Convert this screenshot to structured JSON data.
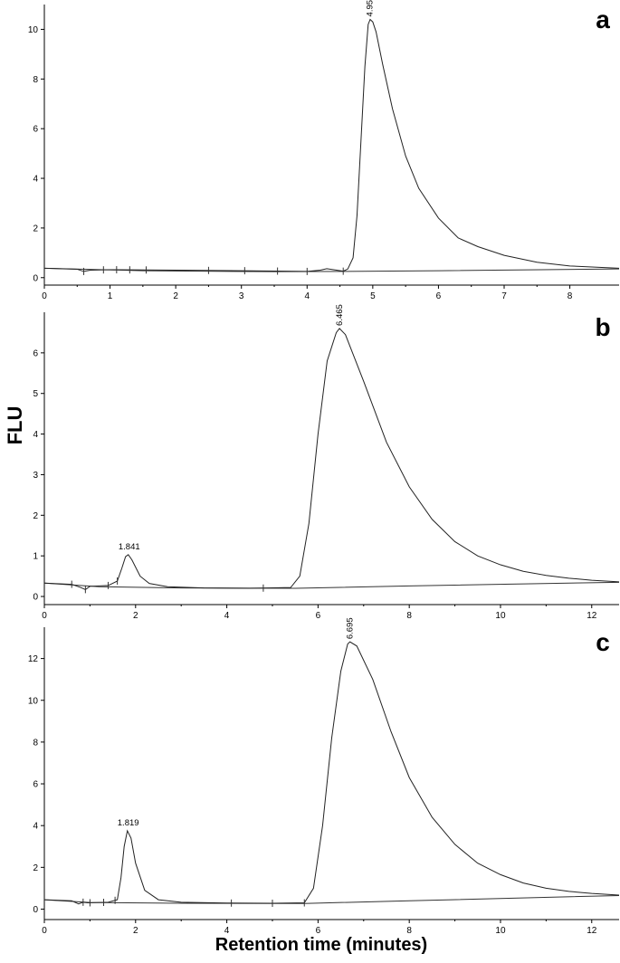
{
  "figure": {
    "ylabel": "FLU",
    "xlabel": "Retention time (minutes)"
  },
  "chart_data": [
    {
      "type": "line",
      "panel_label": "a",
      "xlim": [
        0,
        8.75
      ],
      "ylim": [
        -0.3,
        11
      ],
      "xticks": [
        0,
        1,
        2,
        3,
        4,
        5,
        6,
        7,
        8
      ],
      "yticks": [
        0,
        2,
        4,
        6,
        8,
        10
      ],
      "baseline": [
        [
          0,
          0.38
        ],
        [
          1.5,
          0.28
        ],
        [
          3.5,
          0.24
        ],
        [
          4.6,
          0.25
        ],
        [
          6,
          0.28
        ],
        [
          8.75,
          0.35
        ]
      ],
      "points": [
        [
          0,
          0.38
        ],
        [
          0.5,
          0.34
        ],
        [
          0.6,
          0.25
        ],
        [
          0.7,
          0.3
        ],
        [
          1.0,
          0.32
        ],
        [
          2.0,
          0.3
        ],
        [
          3.0,
          0.28
        ],
        [
          4.0,
          0.25
        ],
        [
          4.2,
          0.3
        ],
        [
          4.3,
          0.36
        ],
        [
          4.45,
          0.3
        ],
        [
          4.55,
          0.26
        ],
        [
          4.62,
          0.35
        ],
        [
          4.7,
          0.8
        ],
        [
          4.76,
          2.5
        ],
        [
          4.82,
          5.5
        ],
        [
          4.88,
          8.5
        ],
        [
          4.93,
          10.2
        ],
        [
          4.96,
          10.4
        ],
        [
          5.0,
          10.3
        ],
        [
          5.05,
          9.9
        ],
        [
          5.15,
          8.6
        ],
        [
          5.3,
          6.8
        ],
        [
          5.5,
          4.9
        ],
        [
          5.7,
          3.6
        ],
        [
          6.0,
          2.4
        ],
        [
          6.3,
          1.6
        ],
        [
          6.6,
          1.25
        ],
        [
          7.0,
          0.9
        ],
        [
          7.5,
          0.62
        ],
        [
          8.0,
          0.47
        ],
        [
          8.75,
          0.38
        ]
      ],
      "peak_labels": [
        {
          "x": 4.957,
          "y": 10.4,
          "text": "4.957"
        }
      ],
      "integration_marks": [
        0.6,
        0.9,
        1.1,
        1.3,
        1.55,
        2.5,
        3.05,
        3.55,
        4.0,
        4.55
      ]
    },
    {
      "type": "line",
      "panel_label": "b",
      "xlim": [
        0,
        12.6
      ],
      "ylim": [
        -0.2,
        7
      ],
      "xticks": [
        0,
        2,
        4,
        6,
        8,
        10,
        12
      ],
      "yticks": [
        0,
        1,
        2,
        3,
        4,
        5,
        6
      ],
      "baseline": [
        [
          0,
          0.33
        ],
        [
          1.2,
          0.24
        ],
        [
          3,
          0.21
        ],
        [
          5.5,
          0.2
        ],
        [
          8,
          0.26
        ],
        [
          12.6,
          0.35
        ]
      ],
      "points": [
        [
          0,
          0.33
        ],
        [
          0.6,
          0.3
        ],
        [
          0.8,
          0.22
        ],
        [
          0.9,
          0.17
        ],
        [
          1.0,
          0.25
        ],
        [
          1.4,
          0.27
        ],
        [
          1.6,
          0.38
        ],
        [
          1.7,
          0.7
        ],
        [
          1.78,
          0.98
        ],
        [
          1.84,
          1.03
        ],
        [
          1.92,
          0.9
        ],
        [
          2.1,
          0.5
        ],
        [
          2.3,
          0.32
        ],
        [
          2.7,
          0.24
        ],
        [
          3.5,
          0.21
        ],
        [
          4.5,
          0.2
        ],
        [
          5.4,
          0.22
        ],
        [
          5.6,
          0.5
        ],
        [
          5.8,
          1.8
        ],
        [
          6.0,
          4.0
        ],
        [
          6.2,
          5.8
        ],
        [
          6.4,
          6.5
        ],
        [
          6.47,
          6.6
        ],
        [
          6.6,
          6.45
        ],
        [
          7.0,
          5.3
        ],
        [
          7.5,
          3.8
        ],
        [
          8.0,
          2.7
        ],
        [
          8.5,
          1.9
        ],
        [
          9.0,
          1.35
        ],
        [
          9.5,
          1.0
        ],
        [
          10.0,
          0.78
        ],
        [
          10.5,
          0.62
        ],
        [
          11.0,
          0.52
        ],
        [
          11.5,
          0.45
        ],
        [
          12.0,
          0.4
        ],
        [
          12.6,
          0.36
        ]
      ],
      "peak_labels": [
        {
          "x": 1.841,
          "y": 1.03,
          "text": "1.841"
        },
        {
          "x": 6.465,
          "y": 6.6,
          "text": "6.465"
        }
      ],
      "integration_marks": [
        0.6,
        0.9,
        1.4,
        1.6,
        4.8
      ]
    },
    {
      "type": "line",
      "panel_label": "c",
      "xlim": [
        0,
        12.6
      ],
      "ylim": [
        -0.5,
        13.5
      ],
      "xticks": [
        0,
        2,
        4,
        6,
        8,
        10,
        12
      ],
      "yticks": [
        0,
        2,
        4,
        6,
        8,
        10,
        12
      ],
      "baseline": [
        [
          0,
          0.45
        ],
        [
          1.0,
          0.32
        ],
        [
          3,
          0.28
        ],
        [
          5.7,
          0.27
        ],
        [
          8,
          0.4
        ],
        [
          12.6,
          0.65
        ]
      ],
      "points": [
        [
          0,
          0.45
        ],
        [
          0.6,
          0.4
        ],
        [
          0.75,
          0.25
        ],
        [
          0.85,
          0.33
        ],
        [
          0.95,
          0.3
        ],
        [
          1.4,
          0.33
        ],
        [
          1.6,
          0.45
        ],
        [
          1.68,
          1.5
        ],
        [
          1.75,
          3.0
        ],
        [
          1.82,
          3.75
        ],
        [
          1.9,
          3.4
        ],
        [
          2.0,
          2.2
        ],
        [
          2.2,
          0.9
        ],
        [
          2.5,
          0.45
        ],
        [
          3.0,
          0.33
        ],
        [
          4.0,
          0.29
        ],
        [
          5.0,
          0.28
        ],
        [
          5.7,
          0.3
        ],
        [
          5.9,
          1.0
        ],
        [
          6.1,
          4.0
        ],
        [
          6.3,
          8.2
        ],
        [
          6.5,
          11.4
        ],
        [
          6.65,
          12.7
        ],
        [
          6.7,
          12.8
        ],
        [
          6.85,
          12.6
        ],
        [
          7.2,
          11.0
        ],
        [
          7.6,
          8.5
        ],
        [
          8.0,
          6.3
        ],
        [
          8.5,
          4.4
        ],
        [
          9.0,
          3.1
        ],
        [
          9.5,
          2.2
        ],
        [
          10.0,
          1.65
        ],
        [
          10.5,
          1.25
        ],
        [
          11.0,
          1.0
        ],
        [
          11.5,
          0.85
        ],
        [
          12.0,
          0.75
        ],
        [
          12.6,
          0.67
        ]
      ],
      "peak_labels": [
        {
          "x": 1.819,
          "y": 3.75,
          "text": "1.819"
        },
        {
          "x": 6.695,
          "y": 12.8,
          "text": "6.695"
        }
      ],
      "integration_marks": [
        0.85,
        1.0,
        1.3,
        1.55,
        4.1,
        5.0,
        5.7
      ]
    }
  ]
}
